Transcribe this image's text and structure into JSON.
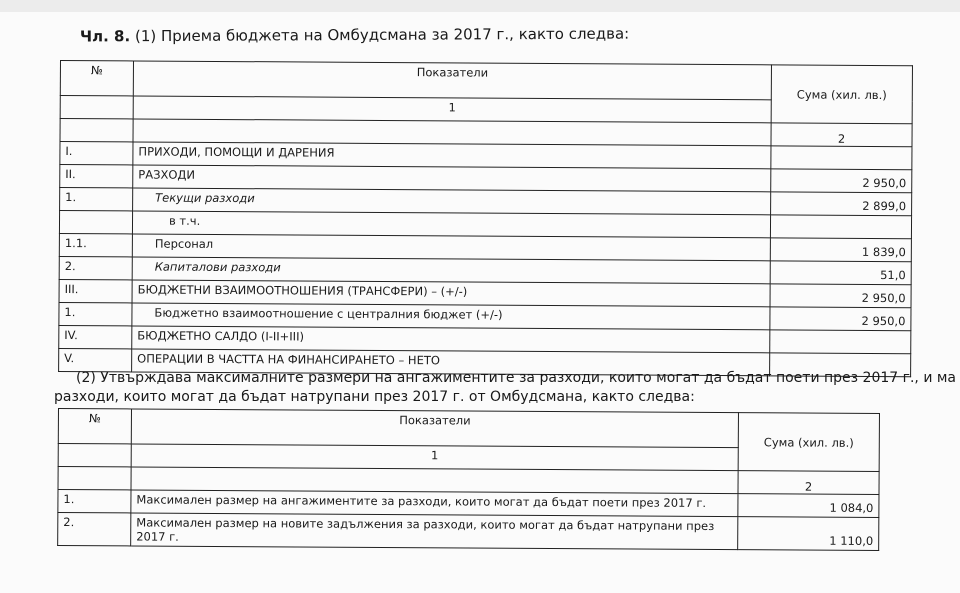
{
  "heading": {
    "article": "Чл. 8.",
    "text": "(1) Приема бюджета на Омбудсмана за 2017 г., както следва:"
  },
  "table1": {
    "headers": {
      "no": "№",
      "indicators": "Показатели",
      "amount": "Сума (хил. лв.)",
      "col1": "1",
      "col2": "2"
    },
    "rows": [
      {
        "no": "I.",
        "label": "ПРИХОДИ, ПОМОЩИ И ДАРЕНИЯ",
        "amount": ""
      },
      {
        "no": "II.",
        "label": "РАЗХОДИ",
        "amount": "2 950,0"
      },
      {
        "no": "1.",
        "label": "Текущи разходи",
        "amount": "2 899,0"
      },
      {
        "no": "",
        "label": "в т.ч.",
        "amount": ""
      },
      {
        "no": "1.1.",
        "label": "Персонал",
        "amount": "1 839,0"
      },
      {
        "no": "2.",
        "label": "Капиталови разходи",
        "amount": "51,0"
      },
      {
        "no": "III.",
        "label": "БЮДЖЕТНИ ВЗАИМООТНОШЕНИЯ (ТРАНСФЕРИ) – (+/-)",
        "amount": "2 950,0"
      },
      {
        "no": "1.",
        "label": "Бюджетно взаимоотношение с централния бюджет (+/-)",
        "amount": "2 950,0"
      },
      {
        "no": "IV.",
        "label": "БЮДЖЕТНО САЛДО (I-II+III)",
        "amount": ""
      },
      {
        "no": "V.",
        "label": "ОПЕРАЦИИ В ЧАСТТА НА ФИНАНСИРАНЕТО – НЕТО",
        "amount": ""
      }
    ]
  },
  "paragraph2": {
    "line1": "(2) Утвърждава максималните размери на ангажиментите за разходи, които могат да бъдат поети през 2017 г., и ма",
    "line2": "разходи, които могат да бъдат натрупани през 2017 г. от Омбудсмана, както следва:"
  },
  "table2": {
    "headers": {
      "no": "№",
      "indicators": "Показатели",
      "amount": "Сума (хил. лв.)",
      "col1": "1",
      "col2": "2"
    },
    "rows": [
      {
        "no": "1.",
        "label": "Максимален размер на ангажиментите за разходи, които могат да бъдат поети през 2017 г.",
        "amount": "1 084,0"
      },
      {
        "no": "2.",
        "label": "Максимален размер на новите задължения за разходи, които могат да бъдат натрупани през 2017 г.",
        "amount": "1 110,0"
      }
    ]
  }
}
